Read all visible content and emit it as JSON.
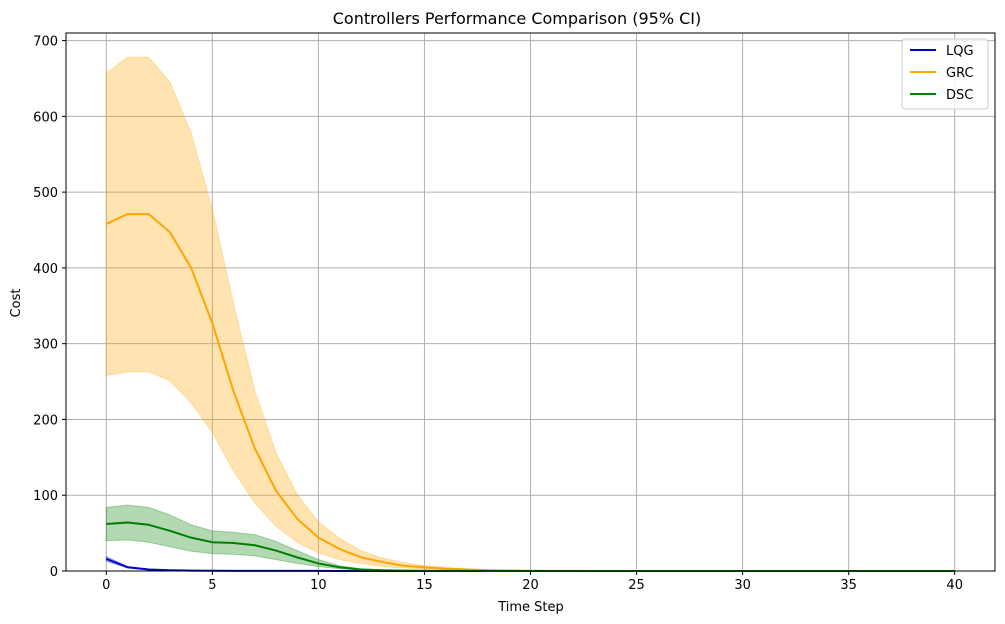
{
  "chart_data": {
    "type": "line",
    "title": "Controllers Performance Comparison (95% CI)",
    "xlabel": "Time Step",
    "ylabel": "Cost",
    "xlim": [
      -1.9,
      41.9
    ],
    "ylim": [
      0,
      710
    ],
    "xticks": [
      0,
      5,
      10,
      15,
      20,
      25,
      30,
      35,
      40
    ],
    "yticks": [
      0,
      100,
      200,
      300,
      400,
      500,
      600,
      700
    ],
    "grid": true,
    "legend_position": "top-right",
    "x": [
      0,
      1,
      2,
      3,
      4,
      5,
      6,
      7,
      8,
      9,
      10,
      11,
      12,
      13,
      14,
      15,
      16,
      17,
      18,
      19,
      20,
      21,
      22,
      23,
      24,
      25,
      26,
      27,
      28,
      29,
      30,
      31,
      32,
      33,
      34,
      35,
      36,
      37,
      38,
      39,
      40
    ],
    "series": [
      {
        "name": "LQG",
        "color": "#0000cd",
        "values": [
          16,
          5,
          2,
          1,
          0.5,
          0.3,
          0.2,
          0.1,
          0.1,
          0.1,
          0.1,
          0,
          0,
          0,
          0,
          0,
          0,
          0,
          0,
          0,
          0,
          0,
          0,
          0,
          0,
          0,
          0,
          0,
          0,
          0,
          0,
          0,
          0,
          0,
          0,
          0,
          0,
          0,
          0,
          0,
          0
        ],
        "lower": [
          13,
          4,
          1.5,
          0.8,
          0.4,
          0.2,
          0.1,
          0.1,
          0,
          0,
          0,
          0,
          0,
          0,
          0,
          0,
          0,
          0,
          0,
          0,
          0,
          0,
          0,
          0,
          0,
          0,
          0,
          0,
          0,
          0,
          0,
          0,
          0,
          0,
          0,
          0,
          0,
          0,
          0,
          0,
          0
        ],
        "upper": [
          19,
          6,
          2.5,
          1.2,
          0.6,
          0.4,
          0.3,
          0.2,
          0.1,
          0.1,
          0.1,
          0,
          0,
          0,
          0,
          0,
          0,
          0,
          0,
          0,
          0,
          0,
          0,
          0,
          0,
          0,
          0,
          0,
          0,
          0,
          0,
          0,
          0,
          0,
          0,
          0,
          0,
          0,
          0,
          0,
          0
        ]
      },
      {
        "name": "GRC",
        "color": "#ffa500",
        "values": [
          458,
          471,
          471,
          447,
          400,
          327,
          237,
          162,
          106,
          69,
          44,
          29,
          18,
          12,
          7,
          5,
          3,
          2,
          1,
          0.6,
          0.3,
          0.2,
          0.1,
          0,
          0,
          0,
          0,
          0,
          0,
          0,
          0,
          0,
          0,
          0,
          0,
          0,
          0,
          0,
          0,
          0,
          0
        ],
        "lower": [
          258,
          263,
          263,
          251,
          222,
          183,
          132,
          90,
          59,
          38,
          24,
          15,
          10,
          6,
          4,
          3,
          2,
          1,
          0.5,
          0.3,
          0.1,
          0,
          0,
          0,
          0,
          0,
          0,
          0,
          0,
          0,
          0,
          0,
          0,
          0,
          0,
          0,
          0,
          0,
          0,
          0,
          0
        ],
        "upper": [
          657,
          678,
          678,
          645,
          578,
          477,
          352,
          238,
          156,
          101,
          65,
          43,
          27,
          17,
          11,
          7,
          5,
          3,
          2,
          1,
          0.6,
          0.3,
          0.2,
          0.1,
          0,
          0,
          0,
          0,
          0,
          0,
          0,
          0,
          0,
          0,
          0,
          0,
          0,
          0,
          0,
          0,
          0
        ]
      },
      {
        "name": "DSC",
        "color": "#008000",
        "values": [
          62,
          64,
          61,
          53,
          44,
          38,
          37,
          34,
          27,
          18,
          10,
          5,
          2,
          1,
          0.5,
          0.3,
          0.2,
          0.1,
          0,
          0,
          0,
          0,
          0,
          0,
          0,
          0,
          0,
          0,
          0,
          0,
          0,
          0,
          0,
          0,
          0,
          0,
          0,
          0,
          0,
          0,
          0
        ],
        "lower": [
          40,
          41,
          38,
          32,
          26,
          23,
          22,
          20,
          15,
          10,
          6,
          3,
          1,
          0.5,
          0.3,
          0.2,
          0.1,
          0,
          0,
          0,
          0,
          0,
          0,
          0,
          0,
          0,
          0,
          0,
          0,
          0,
          0,
          0,
          0,
          0,
          0,
          0,
          0,
          0,
          0,
          0,
          0
        ],
        "upper": [
          84,
          87,
          84,
          74,
          61,
          53,
          51,
          48,
          39,
          27,
          15,
          7,
          3,
          1.5,
          0.8,
          0.4,
          0.3,
          0.2,
          0.1,
          0,
          0,
          0,
          0,
          0,
          0,
          0,
          0,
          0,
          0,
          0,
          0,
          0,
          0,
          0,
          0,
          0,
          0,
          0,
          0,
          0,
          0
        ]
      }
    ]
  }
}
